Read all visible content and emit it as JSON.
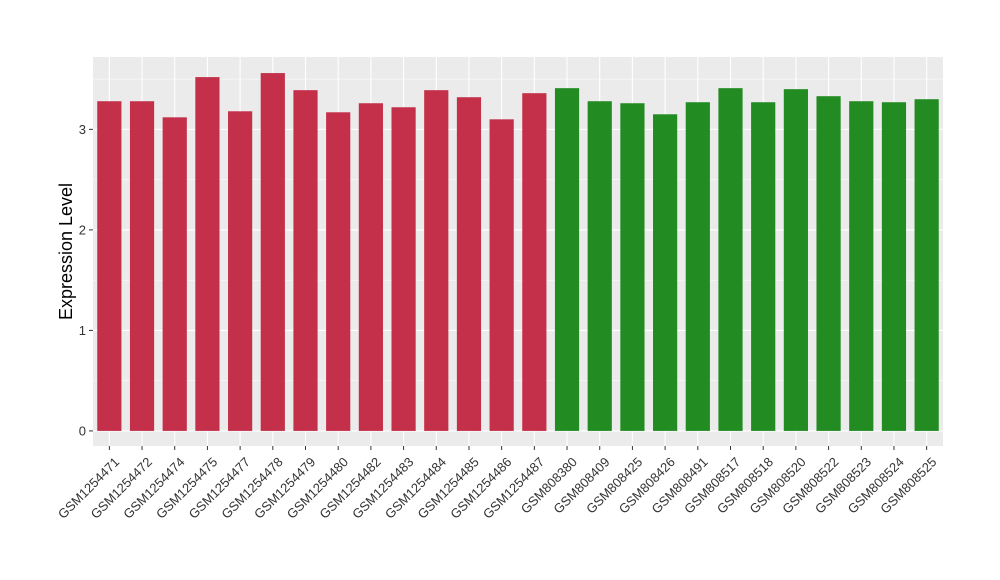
{
  "chart_data": {
    "type": "bar",
    "title": "",
    "xlabel": "",
    "ylabel": "Expression Level",
    "ylim": [
      -0.15,
      3.72
    ],
    "yticks": [
      0,
      1,
      2,
      3
    ],
    "grid": true,
    "legend": "none",
    "categories": [
      "GSM1254471",
      "GSM1254472",
      "GSM1254474",
      "GSM1254475",
      "GSM1254477",
      "GSM1254478",
      "GSM1254479",
      "GSM1254480",
      "GSM1254482",
      "GSM1254483",
      "GSM1254484",
      "GSM1254485",
      "GSM1254486",
      "GSM1254487",
      "GSM808380",
      "GSM808409",
      "GSM808425",
      "GSM808426",
      "GSM808491",
      "GSM808517",
      "GSM808518",
      "GSM808520",
      "GSM808522",
      "GSM808523",
      "GSM808524",
      "GSM808525"
    ],
    "values": [
      3.28,
      3.28,
      3.12,
      3.52,
      3.18,
      3.56,
      3.39,
      3.17,
      3.26,
      3.22,
      3.39,
      3.32,
      3.1,
      3.36,
      3.41,
      3.28,
      3.26,
      3.15,
      3.27,
      3.41,
      3.27,
      3.4,
      3.33,
      3.28,
      3.27,
      3.3
    ],
    "group_sizes": [
      14,
      12
    ],
    "colors": [
      "#c4304a",
      "#228b22"
    ]
  },
  "style": {
    "panel_bg": "#ebebeb",
    "grid_color": "#ffffff"
  }
}
